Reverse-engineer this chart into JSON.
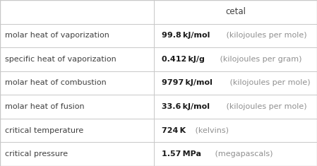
{
  "title": "cetal",
  "rows": [
    [
      "molar heat of vaporization",
      "99.8 kJ/mol",
      " (kilojoules per mole)"
    ],
    [
      "specific heat of vaporization",
      "0.412 kJ/g",
      " (kilojoules per gram)"
    ],
    [
      "molar heat of combustion",
      "9797 kJ/mol",
      " (kilojoules per mole)"
    ],
    [
      "molar heat of fusion",
      "33.6 kJ/mol",
      " (kilojoules per mole)"
    ],
    [
      "critical temperature",
      "724 K",
      " (kelvins)"
    ],
    [
      "critical pressure",
      "1.57 MPa",
      " (megapascals)"
    ]
  ],
  "col_split": 0.485,
  "bg_color": "#ffffff",
  "grid_color": "#c8c8c8",
  "text_color_label": "#404040",
  "text_color_value_bold": "#1a1a1a",
  "text_color_unit": "#909090",
  "header_text_color": "#404040",
  "label_fontsize": 8.0,
  "value_fontsize": 8.0,
  "header_fontsize": 8.5
}
